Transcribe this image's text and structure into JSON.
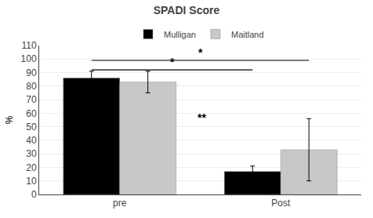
{
  "chart_data": {
    "type": "bar",
    "title": "SPADI Score",
    "ylabel": "%",
    "categories": [
      "pre",
      "Post"
    ],
    "series": [
      {
        "name": "Mulligan",
        "color": "#000000",
        "values": [
          86,
          17
        ],
        "errors": [
          5,
          4
        ]
      },
      {
        "name": "Maitland",
        "color": "#c8c8c8",
        "values": [
          83,
          33
        ],
        "errors": [
          8,
          23
        ]
      }
    ],
    "ylim": [
      0,
      110
    ],
    "yticks": [
      0,
      10,
      20,
      30,
      40,
      50,
      60,
      70,
      80,
      90,
      100,
      110
    ],
    "grid": true,
    "legend": "top",
    "annotations": [
      {
        "text": "*",
        "y": 99,
        "from": {
          "category": "pre",
          "series": "Mulligan"
        },
        "to": {
          "category": "Post",
          "series": "Maitland"
        }
      },
      {
        "text": "*",
        "y": 92,
        "from": {
          "category": "pre",
          "series": "Mulligan"
        },
        "to": {
          "category": "Post",
          "series": "Mulligan"
        }
      },
      {
        "text": "**",
        "y": 57,
        "category": "Post",
        "series": "Mulligan"
      }
    ]
  }
}
